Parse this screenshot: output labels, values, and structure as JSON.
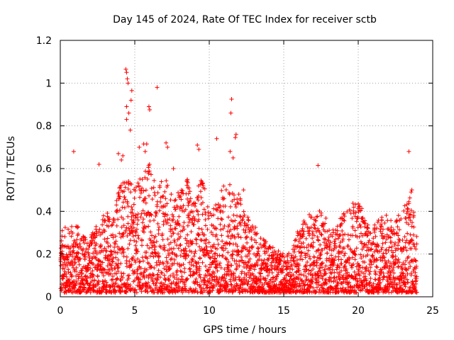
{
  "chart_data": {
    "type": "scatter",
    "title": "Day 145 of 2024, Rate Of TEC Index for receiver sctb",
    "xlabel": "GPS time / hours",
    "ylabel": "ROTI / TECUs",
    "xlim": [
      0,
      25
    ],
    "ylim": [
      0,
      1.2
    ],
    "xticks": [
      "0",
      "5",
      "10",
      "15",
      "20",
      "25"
    ],
    "yticks": [
      "0",
      "0.2",
      "0.4",
      "0.6",
      "0.8",
      "1",
      "1.2"
    ],
    "grid": true,
    "marker": "+",
    "marker_color": "#ff0000",
    "series": [
      {
        "name": "ROTI",
        "outliers": [
          [
            0.9,
            0.68
          ],
          [
            2.6,
            0.62
          ],
          [
            3.9,
            0.67
          ],
          [
            4.1,
            0.64
          ],
          [
            4.2,
            0.66
          ],
          [
            4.4,
            1.065
          ],
          [
            4.45,
            1.05
          ],
          [
            4.5,
            1.02
          ],
          [
            4.55,
            1.0
          ],
          [
            4.45,
            0.89
          ],
          [
            4.6,
            0.86
          ],
          [
            4.45,
            0.83
          ],
          [
            4.7,
            0.78
          ],
          [
            4.75,
            0.92
          ],
          [
            4.8,
            0.965
          ],
          [
            5.3,
            0.7
          ],
          [
            5.6,
            0.715
          ],
          [
            5.8,
            0.715
          ],
          [
            5.95,
            0.89
          ],
          [
            6.0,
            0.875
          ],
          [
            5.7,
            0.68
          ],
          [
            6.5,
            0.98
          ],
          [
            7.1,
            0.72
          ],
          [
            7.2,
            0.7
          ],
          [
            7.6,
            0.6
          ],
          [
            9.2,
            0.71
          ],
          [
            9.3,
            0.69
          ],
          [
            10.5,
            0.74
          ],
          [
            11.4,
            0.68
          ],
          [
            11.5,
            0.925
          ],
          [
            11.45,
            0.86
          ],
          [
            11.8,
            0.76
          ],
          [
            11.75,
            0.745
          ],
          [
            11.6,
            0.65
          ],
          [
            12.3,
            0.5
          ],
          [
            17.3,
            0.615
          ],
          [
            23.4,
            0.68
          ],
          [
            23.6,
            0.5
          ],
          [
            23.55,
            0.49
          ]
        ],
        "envelope": [
          [
            0,
            0.32
          ],
          [
            0.5,
            0.33
          ],
          [
            1.0,
            0.35
          ],
          [
            1.5,
            0.3
          ],
          [
            2.0,
            0.28
          ],
          [
            2.5,
            0.36
          ],
          [
            3.0,
            0.4
          ],
          [
            3.5,
            0.38
          ],
          [
            4.0,
            0.55
          ],
          [
            4.3,
            0.62
          ],
          [
            4.6,
            0.55
          ],
          [
            5.0,
            0.5
          ],
          [
            5.5,
            0.6
          ],
          [
            6.0,
            0.65
          ],
          [
            6.5,
            0.5
          ],
          [
            7.0,
            0.58
          ],
          [
            7.5,
            0.48
          ],
          [
            8.0,
            0.5
          ],
          [
            8.5,
            0.56
          ],
          [
            9.0,
            0.45
          ],
          [
            9.5,
            0.58
          ],
          [
            10.0,
            0.4
          ],
          [
            10.5,
            0.45
          ],
          [
            11.0,
            0.55
          ],
          [
            11.5,
            0.52
          ],
          [
            12.0,
            0.48
          ],
          [
            12.5,
            0.38
          ],
          [
            13.0,
            0.35
          ],
          [
            13.5,
            0.28
          ],
          [
            14.0,
            0.25
          ],
          [
            14.5,
            0.22
          ],
          [
            15.0,
            0.2
          ],
          [
            15.5,
            0.22
          ],
          [
            16.0,
            0.32
          ],
          [
            16.5,
            0.4
          ],
          [
            17.0,
            0.38
          ],
          [
            17.5,
            0.42
          ],
          [
            18.0,
            0.35
          ],
          [
            18.5,
            0.32
          ],
          [
            19.0,
            0.4
          ],
          [
            19.5,
            0.42
          ],
          [
            20.0,
            0.5
          ],
          [
            20.5,
            0.35
          ],
          [
            21.0,
            0.32
          ],
          [
            21.5,
            0.42
          ],
          [
            22.0,
            0.38
          ],
          [
            22.5,
            0.35
          ],
          [
            23.0,
            0.45
          ],
          [
            23.5,
            0.5
          ],
          [
            23.9,
            0.35
          ]
        ],
        "floor": 0.02
      }
    ]
  }
}
